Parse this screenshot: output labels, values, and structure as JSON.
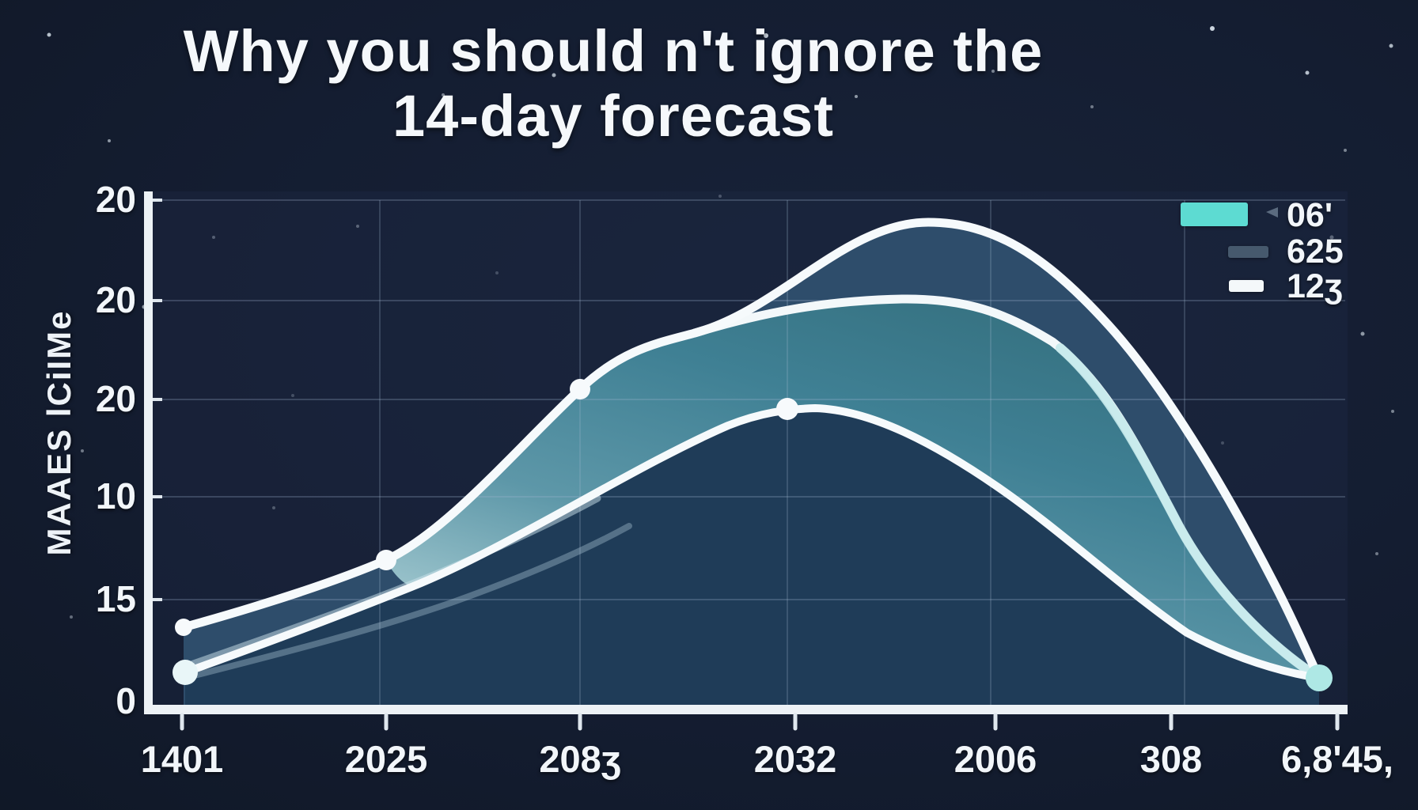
{
  "title": {
    "line1": "Why you should n't ignore the",
    "line2": "14-day forecast"
  },
  "y_axis": {
    "title": "MAAES lCiIMe",
    "ticks": [
      "20",
      "20",
      "20",
      "10",
      "15",
      "0"
    ]
  },
  "x_axis": {
    "ticks": [
      "1401",
      "2025",
      "208ʒ",
      "2032",
      "2006",
      "308",
      "6,8'45,"
    ]
  },
  "legend": {
    "items": [
      {
        "label": "06'",
        "color": "#5ddbd2"
      },
      {
        "label": "625",
        "color": "#46596d"
      },
      {
        "label": "12ʒ",
        "color": "#f4f8fa"
      }
    ]
  },
  "colors": {
    "background": "#141d31",
    "area_dark": "#2e4d6b",
    "area_under_line": "#1f3c58",
    "area_teal_light": "#b9d9dd",
    "area_teal_mid": "#4b8c9e",
    "area_teal_deep": "#35707f",
    "line_white": "#f6fafc",
    "line_pale_cyan": "#c6e9eb",
    "end_dot_cyan": "#aee8e5",
    "legend_teal": "#5ddbd2",
    "grid": "rgba(165,185,210,0.25)"
  },
  "chart_data": {
    "type": "area",
    "title": "Why you should n't ignore the 14-day forecast",
    "ylabel": "MAAES lCiIMe",
    "x": [
      "1401",
      "2025",
      "208ʒ",
      "2032",
      "2006",
      "308",
      "6,8'45,"
    ],
    "y_tick_labels": [
      "20",
      "20",
      "20",
      "10",
      "15",
      "0"
    ],
    "ylim": [
      0,
      20
    ],
    "grid": true,
    "legend_position": "top-right",
    "background": "dark-navy-starfield",
    "series": [
      {
        "name": "625",
        "style": "area-dark-filled",
        "values": [
          3.0,
          5.6,
          12.5,
          17.1,
          18.4,
          10.3,
          0.9
        ]
      },
      {
        "name": "06'",
        "style": "area-teal-filled",
        "values": [
          3.0,
          5.6,
          12.5,
          15.7,
          15.4,
          7.3,
          0.9
        ]
      },
      {
        "name": "12ʒ",
        "style": "line-round-markers",
        "values": [
          1.2,
          3.8,
          7.9,
          11.7,
          8.6,
          3.3,
          1.0
        ]
      }
    ]
  }
}
